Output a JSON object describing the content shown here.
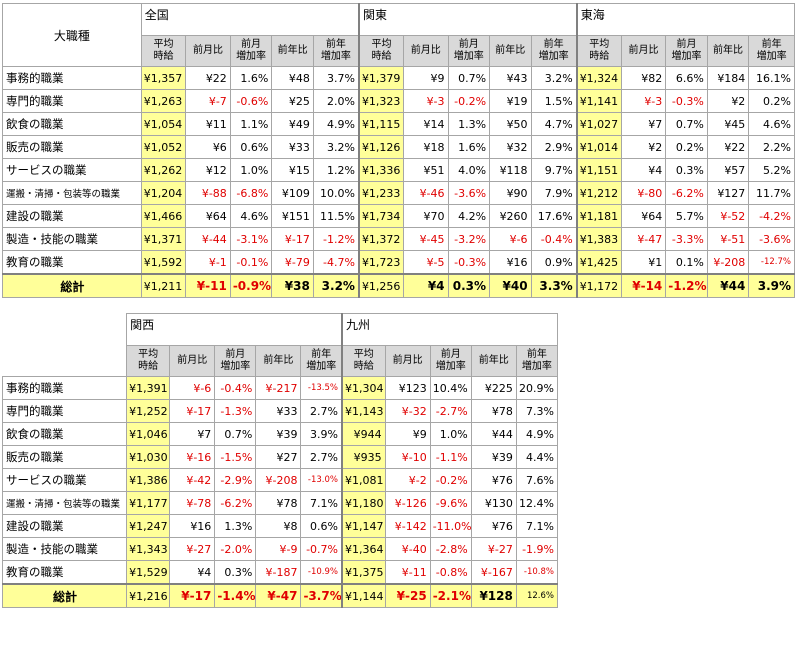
{
  "table1": {
    "corner_label": "大職種",
    "regions": [
      "全国",
      "関東",
      "東海"
    ],
    "subheaders": [
      [
        "平均",
        "時給"
      ],
      [
        "前月比"
      ],
      [
        "前月",
        "増加率"
      ],
      [
        "前年比"
      ],
      [
        "前年",
        "増加率"
      ]
    ],
    "rows": [
      {
        "category": "事務的職業",
        "cells": [
          "¥1,357",
          "¥22",
          "1.6%",
          "¥48",
          "3.7%",
          "¥1,379",
          "¥9",
          "0.7%",
          "¥43",
          "3.2%",
          "¥1,324",
          "¥82",
          "6.6%",
          "¥184",
          "16.1%"
        ]
      },
      {
        "category": "専門的職業",
        "cells": [
          "¥1,263",
          "¥-7",
          "-0.6%",
          "¥25",
          "2.0%",
          "¥1,323",
          "¥-3",
          "-0.2%",
          "¥19",
          "1.5%",
          "¥1,141",
          "¥-3",
          "-0.3%",
          "¥2",
          "0.2%"
        ]
      },
      {
        "category": "飲食の職業",
        "cells": [
          "¥1,054",
          "¥11",
          "1.1%",
          "¥49",
          "4.9%",
          "¥1,115",
          "¥14",
          "1.3%",
          "¥50",
          "4.7%",
          "¥1,027",
          "¥7",
          "0.7%",
          "¥45",
          "4.6%"
        ]
      },
      {
        "category": "販売の職業",
        "cells": [
          "¥1,052",
          "¥6",
          "0.6%",
          "¥33",
          "3.2%",
          "¥1,126",
          "¥18",
          "1.6%",
          "¥32",
          "2.9%",
          "¥1,014",
          "¥2",
          "0.2%",
          "¥22",
          "2.2%"
        ]
      },
      {
        "category": "サービスの職業",
        "cells": [
          "¥1,262",
          "¥12",
          "1.0%",
          "¥15",
          "1.2%",
          "¥1,336",
          "¥51",
          "4.0%",
          "¥118",
          "9.7%",
          "¥1,151",
          "¥4",
          "0.3%",
          "¥57",
          "5.2%"
        ]
      },
      {
        "category": "運搬・清掃・包装等の職業",
        "cells": [
          "¥1,204",
          "¥-88",
          "-6.8%",
          "¥109",
          "10.0%",
          "¥1,233",
          "¥-46",
          "-3.6%",
          "¥90",
          "7.9%",
          "¥1,212",
          "¥-80",
          "-6.2%",
          "¥127",
          "11.7%"
        ]
      },
      {
        "category": "建設の職業",
        "cells": [
          "¥1,466",
          "¥64",
          "4.6%",
          "¥151",
          "11.5%",
          "¥1,734",
          "¥70",
          "4.2%",
          "¥260",
          "17.6%",
          "¥1,181",
          "¥64",
          "5.7%",
          "¥-52",
          "-4.2%"
        ]
      },
      {
        "category": "製造・技能の職業",
        "cells": [
          "¥1,371",
          "¥-44",
          "-3.1%",
          "¥-17",
          "-1.2%",
          "¥1,372",
          "¥-45",
          "-3.2%",
          "¥-6",
          "-0.4%",
          "¥1,383",
          "¥-47",
          "-3.3%",
          "¥-51",
          "-3.6%"
        ]
      },
      {
        "category": "教育の職業",
        "cells": [
          "¥1,592",
          "¥-1",
          "-0.1%",
          "¥-79",
          "-4.7%",
          "¥1,723",
          "¥-5",
          "-0.3%",
          "¥16",
          "0.9%",
          "¥1,425",
          "¥1",
          "0.1%",
          "¥-208",
          "-12.7%"
        ]
      }
    ],
    "total": {
      "category": "総計",
      "cells": [
        "¥1,211",
        "¥-11",
        "-0.9%",
        "¥38",
        "3.2%",
        "¥1,256",
        "¥4",
        "0.3%",
        "¥40",
        "3.3%",
        "¥1,172",
        "¥-14",
        "-1.2%",
        "¥44",
        "3.9%"
      ]
    }
  },
  "table2": {
    "regions": [
      "関西",
      "九州"
    ],
    "subheaders": [
      [
        "平均",
        "時給"
      ],
      [
        "前月比"
      ],
      [
        "前月",
        "増加率"
      ],
      [
        "前年比"
      ],
      [
        "前年",
        "増加率"
      ]
    ],
    "rows": [
      {
        "category": "事務的職業",
        "cells": [
          "¥1,391",
          "¥-6",
          "-0.4%",
          "¥-217",
          "-13.5%",
          "¥1,304",
          "¥123",
          "10.4%",
          "¥225",
          "20.9%"
        ]
      },
      {
        "category": "専門的職業",
        "cells": [
          "¥1,252",
          "¥-17",
          "-1.3%",
          "¥33",
          "2.7%",
          "¥1,143",
          "¥-32",
          "-2.7%",
          "¥78",
          "7.3%"
        ]
      },
      {
        "category": "飲食の職業",
        "cells": [
          "¥1,046",
          "¥7",
          "0.7%",
          "¥39",
          "3.9%",
          "¥944",
          "¥9",
          "1.0%",
          "¥44",
          "4.9%"
        ]
      },
      {
        "category": "販売の職業",
        "cells": [
          "¥1,030",
          "¥-16",
          "-1.5%",
          "¥27",
          "2.7%",
          "¥935",
          "¥-10",
          "-1.1%",
          "¥39",
          "4.4%"
        ]
      },
      {
        "category": "サービスの職業",
        "cells": [
          "¥1,386",
          "¥-42",
          "-2.9%",
          "¥-208",
          "-13.0%",
          "¥1,081",
          "¥-2",
          "-0.2%",
          "¥76",
          "7.6%"
        ]
      },
      {
        "category": "運搬・清掃・包装等の職業",
        "cells": [
          "¥1,177",
          "¥-78",
          "-6.2%",
          "¥78",
          "7.1%",
          "¥1,180",
          "¥-126",
          "-9.6%",
          "¥130",
          "12.4%"
        ]
      },
      {
        "category": "建設の職業",
        "cells": [
          "¥1,247",
          "¥16",
          "1.3%",
          "¥8",
          "0.6%",
          "¥1,147",
          "¥-142",
          "-11.0%",
          "¥76",
          "7.1%"
        ]
      },
      {
        "category": "製造・技能の職業",
        "cells": [
          "¥1,343",
          "¥-27",
          "-2.0%",
          "¥-9",
          "-0.7%",
          "¥1,364",
          "¥-40",
          "-2.8%",
          "¥-27",
          "-1.9%"
        ]
      },
      {
        "category": "教育の職業",
        "cells": [
          "¥1,529",
          "¥4",
          "0.3%",
          "¥-187",
          "-10.9%",
          "¥1,375",
          "¥-11",
          "-0.8%",
          "¥-167",
          "-10.8%"
        ]
      }
    ],
    "total": {
      "category": "総計",
      "cells": [
        "¥1,216",
        "¥-17",
        "-1.4%",
        "¥-47",
        "-3.7%",
        "¥1,144",
        "¥-25",
        "-2.1%",
        "¥128",
        "12.6%"
      ]
    }
  },
  "colors": {
    "avg_highlight": "#ffff99",
    "negative": "#e00000",
    "header_gray": "#d9d9d9"
  }
}
